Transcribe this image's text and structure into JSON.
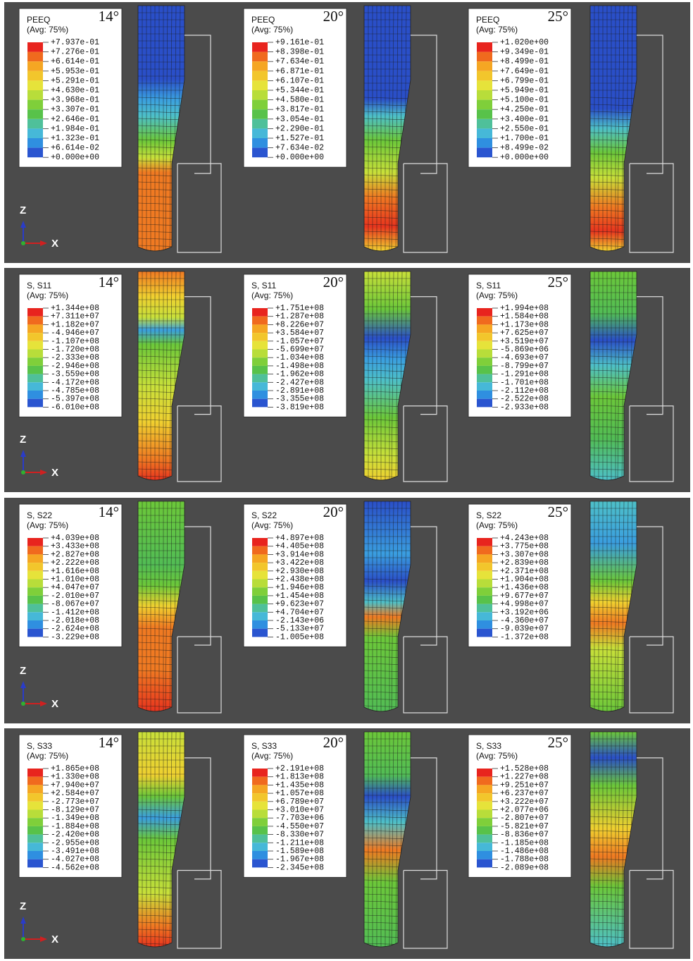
{
  "panels": [
    {
      "axis_z": "Z",
      "axis_x": "X",
      "plots": [
        {
          "variable": "PEEQ",
          "averaging": "(Avg: 75%)",
          "angle": "14°",
          "values": [
            "+7.937e-01",
            "+7.276e-01",
            "+6.614e-01",
            "+5.953e-01",
            "+5.291e-01",
            "+4.630e-01",
            "+3.968e-01",
            "+3.307e-01",
            "+2.646e-01",
            "+1.984e-01",
            "+1.323e-01",
            "+6.614e-02",
            "+0.000e+00"
          ]
        },
        {
          "variable": "PEEQ",
          "averaging": "(Avg: 75%)",
          "angle": "20°",
          "values": [
            "+9.161e-01",
            "+8.398e-01",
            "+7.634e-01",
            "+6.871e-01",
            "+6.107e-01",
            "+5.344e-01",
            "+4.580e-01",
            "+3.817e-01",
            "+3.054e-01",
            "+2.290e-01",
            "+1.527e-01",
            "+7.634e-02",
            "+0.000e+00"
          ]
        },
        {
          "variable": "PEEQ",
          "averaging": "(Avg: 75%)",
          "angle": "25°",
          "values": [
            "+1.020e+00",
            "+9.349e-01",
            "+8.499e-01",
            "+7.649e-01",
            "+6.799e-01",
            "+5.949e-01",
            "+5.100e-01",
            "+4.250e-01",
            "+3.400e-01",
            "+2.550e-01",
            "+1.700e-01",
            "+8.499e-02",
            "+0.000e+00"
          ]
        }
      ]
    },
    {
      "axis_z": "Z",
      "axis_x": "X",
      "plots": [
        {
          "variable": "S, S11",
          "averaging": "(Avg: 75%)",
          "angle": "14°",
          "values": [
            "+1.344e+08",
            "+7.311e+07",
            "+1.182e+07",
            "-4.946e+07",
            "-1.107e+08",
            "-1.720e+08",
            "-2.333e+08",
            "-2.946e+08",
            "-3.559e+08",
            "-4.172e+08",
            "-4.785e+08",
            "-5.397e+08",
            "-6.010e+08"
          ]
        },
        {
          "variable": "S, S11",
          "averaging": "(Avg: 75%)",
          "angle": "20°",
          "values": [
            "+1.751e+08",
            "+1.287e+08",
            "+8.226e+07",
            "+3.584e+07",
            "-1.057e+07",
            "-5.699e+07",
            "-1.034e+08",
            "-1.498e+08",
            "-1.962e+08",
            "-2.427e+08",
            "-2.891e+08",
            "-3.355e+08",
            "-3.819e+08"
          ]
        },
        {
          "variable": "S, S11",
          "averaging": "(Avg: 75%)",
          "angle": "25°",
          "values": [
            "+1.994e+08",
            "+1.584e+08",
            "+1.173e+08",
            "+7.625e+07",
            "+3.519e+07",
            "-5.869e+06",
            "-4.693e+07",
            "-8.799e+07",
            "-1.291e+08",
            "-1.701e+08",
            "-2.112e+08",
            "-2.522e+08",
            "-2.933e+08"
          ]
        }
      ]
    },
    {
      "axis_z": "Z",
      "axis_x": "X",
      "plots": [
        {
          "variable": "S, S22",
          "averaging": "(Avg: 75%)",
          "angle": "14°",
          "values": [
            "+4.039e+08",
            "+3.433e+08",
            "+2.827e+08",
            "+2.222e+08",
            "+1.616e+08",
            "+1.010e+08",
            "+4.047e+07",
            "-2.010e+07",
            "-8.067e+07",
            "-1.412e+08",
            "-2.018e+08",
            "-2.624e+08",
            "-3.229e+08"
          ]
        },
        {
          "variable": "S, S22",
          "averaging": "(Avg: 75%)",
          "angle": "20°",
          "values": [
            "+4.897e+08",
            "+4.405e+08",
            "+3.914e+08",
            "+3.422e+08",
            "+2.930e+08",
            "+2.438e+08",
            "+1.946e+08",
            "+1.454e+08",
            "+9.623e+07",
            "+4.704e+07",
            "-2.143e+06",
            "-5.133e+07",
            "-1.005e+08"
          ]
        },
        {
          "variable": "S, S22",
          "averaging": "(Avg: 75%)",
          "angle": "25°",
          "values": [
            "+4.243e+08",
            "+3.775e+08",
            "+3.307e+08",
            "+2.839e+08",
            "+2.371e+08",
            "+1.904e+08",
            "+1.436e+08",
            "+9.677e+07",
            "+4.998e+07",
            "+3.192e+06",
            "-4.360e+07",
            "-9.039e+07",
            "-1.372e+08"
          ]
        }
      ]
    },
    {
      "axis_z": "Z",
      "axis_x": "X",
      "plots": [
        {
          "variable": "S, S33",
          "averaging": "(Avg: 75%)",
          "angle": "14°",
          "values": [
            "+1.865e+08",
            "+1.330e+08",
            "+7.940e+07",
            "+2.584e+07",
            "-2.773e+07",
            "-8.129e+07",
            "-1.349e+08",
            "-1.884e+08",
            "-2.420e+08",
            "-2.955e+08",
            "-3.491e+08",
            "-4.027e+08",
            "-4.562e+08"
          ]
        },
        {
          "variable": "S, S33",
          "averaging": "(Avg: 75%)",
          "angle": "20°",
          "values": [
            "+2.191e+08",
            "+1.813e+08",
            "+1.435e+08",
            "+1.057e+08",
            "+6.789e+07",
            "+3.010e+07",
            "-7.703e+06",
            "-4.550e+07",
            "-8.330e+07",
            "-1.211e+08",
            "-1.589e+08",
            "-1.967e+08",
            "-2.345e+08"
          ]
        },
        {
          "variable": "S, S33",
          "averaging": "(Avg: 75%)",
          "angle": "25°",
          "values": [
            "+1.528e+08",
            "+1.227e+08",
            "+9.251e+07",
            "+6.237e+07",
            "+3.222e+07",
            "+2.077e+06",
            "-2.807e+07",
            "-5.821e+07",
            "-8.836e+07",
            "-1.185e+08",
            "-1.486e+08",
            "-1.788e+08",
            "-2.089e+08"
          ]
        }
      ]
    }
  ]
}
